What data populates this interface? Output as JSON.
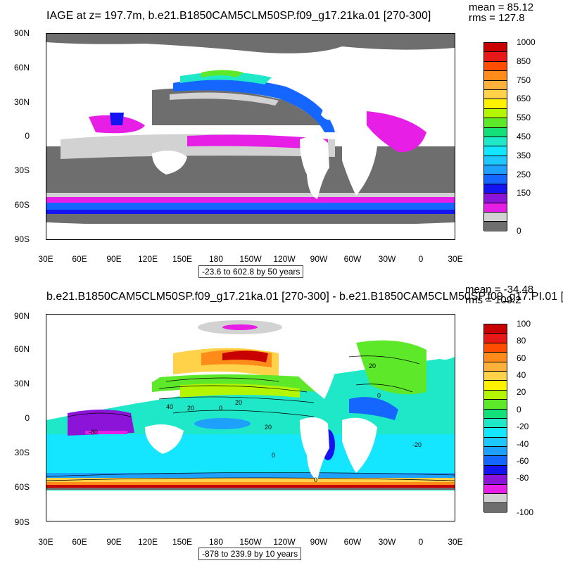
{
  "panel1": {
    "title": "IAGE at z= 197.7m, b.e21.B1850CAM5CLM50SP.f09_g17.21ka.01 [270-300]",
    "mean": "mean = 85.12",
    "rms": "rms = 127.8",
    "range": "-23.6 to 602.8 by 50 years",
    "colorbar": {
      "labels": [
        "1000",
        "850",
        "750",
        "650",
        "550",
        "450",
        "350",
        "250",
        "150",
        "0"
      ],
      "colors": [
        "#c80000",
        "#e81818",
        "#ff4d00",
        "#ff8c1a",
        "#ffb03a",
        "#ffd24a",
        "#fff200",
        "#b4f500",
        "#5ee82a",
        "#14e07a",
        "#1ee8c8",
        "#14e6ff",
        "#1ec8ff",
        "#1ea0ff",
        "#1466ff",
        "#1414f0",
        "#8c14d8",
        "#e61ee6",
        "#d2d2d2",
        "#6e6e6e"
      ]
    }
  },
  "panel2": {
    "title": "b.e21.B1850CAM5CLM50SP.f09_g17.21ka.01 [270-300] - b.e21.B1850CAM5CLM50SP.f09_g17.PI.01 [",
    "mean": "mean = -34.48",
    "rms": "rms = 109.2",
    "range": "-878 to 239.9 by 10 years",
    "contour_labels": [
      "20",
      "20",
      "0",
      "20",
      "20",
      "0",
      "40",
      "0",
      "0",
      "-20",
      "-80"
    ],
    "colorbar": {
      "labels": [
        "100",
        "80",
        "60",
        "40",
        "20",
        "0",
        "-20",
        "-40",
        "-60",
        "-80",
        "-100"
      ],
      "colors": [
        "#c80000",
        "#e81818",
        "#ff4d00",
        "#ff8c1a",
        "#ffb03a",
        "#ffd24a",
        "#fff200",
        "#b4f500",
        "#5ee82a",
        "#14e07a",
        "#1ee8c8",
        "#14e6ff",
        "#1ec8ff",
        "#1ea0ff",
        "#1466ff",
        "#1414f0",
        "#8c14d8",
        "#e61ee6",
        "#d2d2d2",
        "#6e6e6e"
      ]
    }
  },
  "axes": {
    "lat_labels": [
      "90N",
      "60N",
      "30N",
      "0",
      "30S",
      "60S",
      "90S"
    ],
    "lon_labels": [
      "30E",
      "60E",
      "90E",
      "120E",
      "150E",
      "180",
      "150W",
      "120W",
      "90W",
      "60W",
      "30W",
      "0",
      "30E"
    ]
  }
}
